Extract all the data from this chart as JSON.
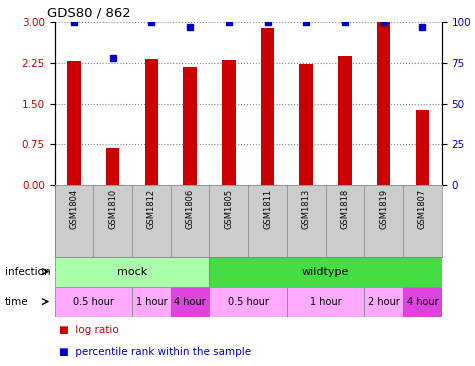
{
  "title": "GDS80 / 862",
  "samples": [
    "GSM1804",
    "GSM1810",
    "GSM1812",
    "GSM1806",
    "GSM1805",
    "GSM1811",
    "GSM1813",
    "GSM1818",
    "GSM1819",
    "GSM1807"
  ],
  "log_ratio": [
    2.28,
    0.68,
    2.32,
    2.18,
    2.31,
    2.88,
    2.23,
    2.38,
    3.0,
    1.38
  ],
  "percentile": [
    100,
    78,
    100,
    97,
    100,
    100,
    100,
    100,
    100,
    97
  ],
  "bar_color": "#cc0000",
  "dot_color": "#0000cc",
  "ylim_left": [
    0,
    3
  ],
  "ylim_right": [
    0,
    100
  ],
  "yticks_left": [
    0,
    0.75,
    1.5,
    2.25,
    3
  ],
  "yticks_right": [
    0,
    25,
    50,
    75,
    100
  ],
  "infection_labels": [
    {
      "text": "mock",
      "start": 0,
      "end": 4,
      "color": "#aaffaa"
    },
    {
      "text": "wildtype",
      "start": 4,
      "end": 10,
      "color": "#44dd44"
    }
  ],
  "time_groups": [
    {
      "text": "0.5 hour",
      "start": 0,
      "end": 2,
      "color": "#ffaaff"
    },
    {
      "text": "1 hour",
      "start": 2,
      "end": 3,
      "color": "#ffaaff"
    },
    {
      "text": "4 hour",
      "start": 3,
      "end": 4,
      "color": "#dd44dd"
    },
    {
      "text": "0.5 hour",
      "start": 4,
      "end": 6,
      "color": "#ffaaff"
    },
    {
      "text": "1 hour",
      "start": 6,
      "end": 8,
      "color": "#ffaaff"
    },
    {
      "text": "2 hour",
      "start": 8,
      "end": 9,
      "color": "#ffaaff"
    },
    {
      "text": "4 hour",
      "start": 9,
      "end": 10,
      "color": "#dd44dd"
    }
  ]
}
